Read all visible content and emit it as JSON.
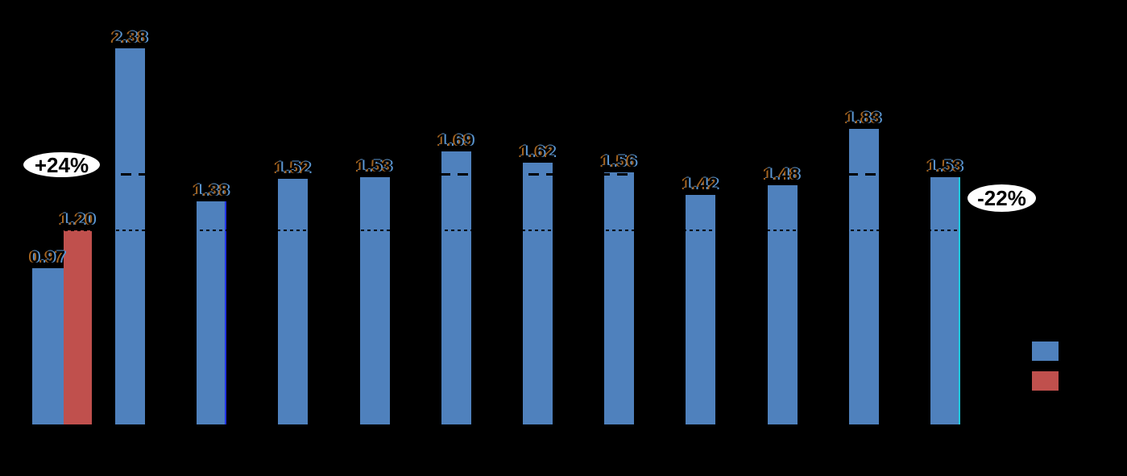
{
  "background_color": "#000000",
  "chart_data": {
    "type": "bar",
    "title": "",
    "axis_labels_visible": false,
    "gridlines_visible": false,
    "ylim": [
      0,
      2.35
    ],
    "series_colors": {
      "blue": "#4F81BD",
      "red": "#C0504D"
    },
    "bars": [
      {
        "label": "0.97",
        "value": 0.97,
        "series": "blue",
        "group": "pair"
      },
      {
        "label": "1.20",
        "value": 1.2,
        "series": "red",
        "group": "pair"
      },
      {
        "label": "2.38",
        "value": 2.38,
        "series": "blue",
        "clipped_at_plot_top": true
      },
      {
        "label": "1.38",
        "value": 1.38,
        "series": "blue",
        "right_edge_highlight": "#2233E8"
      },
      {
        "label": "1.52",
        "value": 1.52,
        "series": "blue"
      },
      {
        "label": "1.53",
        "value": 1.53,
        "series": "blue"
      },
      {
        "label": "1.69",
        "value": 1.69,
        "series": "blue"
      },
      {
        "label": "1.62",
        "value": 1.62,
        "series": "blue"
      },
      {
        "label": "1.56",
        "value": 1.56,
        "series": "blue"
      },
      {
        "label": "1.42",
        "value": 1.42,
        "series": "blue"
      },
      {
        "label": "1.48",
        "value": 1.48,
        "series": "blue"
      },
      {
        "label": "1.83",
        "value": 1.83,
        "series": "blue"
      },
      {
        "label": "1.53",
        "value": 1.53,
        "series": "blue",
        "right_edge_highlight": "#1EC9DC"
      }
    ],
    "reference_lines": [
      {
        "style": "long-dash",
        "value": 1.55,
        "color": "#000000"
      },
      {
        "style": "dotted",
        "value": 1.2,
        "color": "#000000"
      }
    ],
    "legend": {
      "position": "bottom-right",
      "items": [
        {
          "swatch_color": "#4F81BD"
        },
        {
          "swatch_color": "#C0504D"
        }
      ]
    }
  },
  "annotations": {
    "plus": {
      "text": "+24%"
    },
    "minus": {
      "text": "-22%"
    }
  },
  "label_fringe_colors": {
    "warm": "#A5641F",
    "cool": "#5A96D2"
  }
}
